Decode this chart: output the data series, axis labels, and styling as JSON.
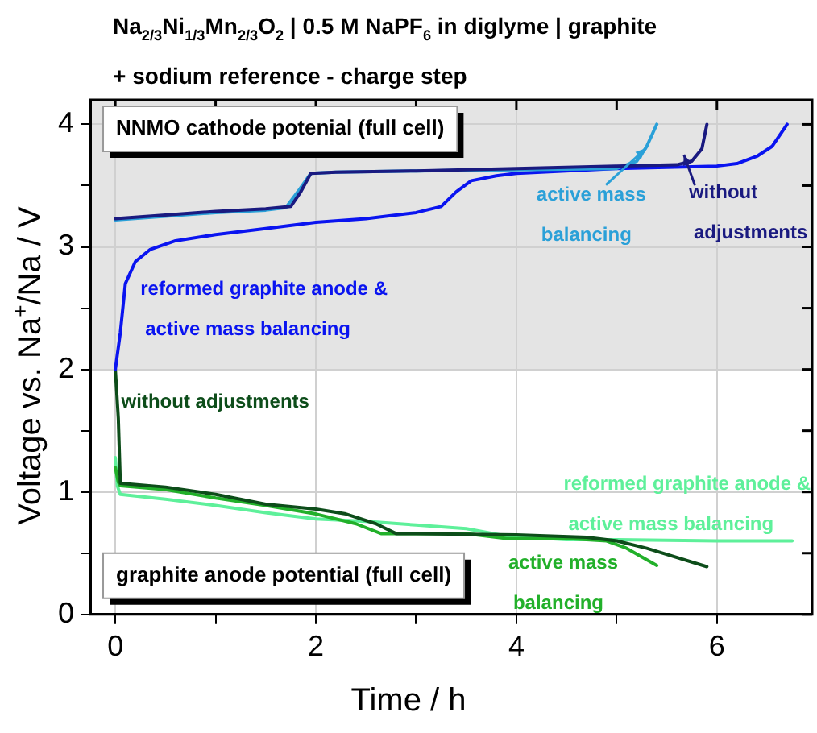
{
  "chart_data": {
    "type": "line",
    "title": "Na$_{2/3}$Ni$_{1/3}$Mn$_{2/3}$O$_{2}$ | 0.5 M NaPF$_{6}$ in diglyme | graphite",
    "subtitle": "+ sodium reference - charge step",
    "xlabel": "Time / h",
    "ylabel": "Voltage vs. Na$^{+}$/Na / V",
    "xlim": [
      -0.25,
      6.95
    ],
    "ylim": [
      0,
      4.2
    ],
    "xticks": [
      0,
      {
        "value": 1,
        "label": null
      },
      2,
      {
        "value": 3,
        "label": null
      },
      4,
      {
        "value": 5,
        "label": null
      },
      6
    ],
    "yticks": [
      0,
      {
        "value": 0.5,
        "label": null
      },
      1,
      {
        "value": 1.5,
        "label": null
      },
      2,
      {
        "value": 2.5,
        "label": null
      },
      3,
      {
        "value": 3.5,
        "label": null
      },
      4
    ],
    "grid": true,
    "marker": "none",
    "line_style": "solid",
    "bands": [
      {
        "axis": "y",
        "from": 2,
        "to": 4.2,
        "color": "#e4e4e4"
      }
    ],
    "series": [
      {
        "name": "without adjustments",
        "color": "#1a1a80",
        "x": [
          0,
          0.5,
          1,
          1.5,
          1.75,
          1.85,
          1.95,
          2.2,
          3,
          4,
          5,
          5.6,
          5.75,
          5.85,
          5.9
        ],
        "values": [
          3.23,
          3.26,
          3.29,
          3.31,
          3.33,
          3.45,
          3.6,
          3.61,
          3.62,
          3.64,
          3.66,
          3.67,
          3.7,
          3.8,
          4.0
        ]
      },
      {
        "name": "active mass balancing",
        "color": "#2aa0d8",
        "x": [
          0,
          0.5,
          1,
          1.5,
          1.7,
          1.82,
          1.95,
          2.2,
          3,
          4,
          5,
          5.2,
          5.3,
          5.4
        ],
        "values": [
          3.22,
          3.25,
          3.28,
          3.3,
          3.32,
          3.45,
          3.6,
          3.61,
          3.62,
          3.63,
          3.64,
          3.7,
          3.82,
          4.0
        ]
      },
      {
        "name": "reformed graphite anode & active mass balancing",
        "color": "#0a14f0",
        "x": [
          0,
          0.05,
          0.1,
          0.2,
          0.35,
          0.6,
          1,
          1.5,
          2,
          2.5,
          3,
          3.25,
          3.4,
          3.55,
          3.8,
          4,
          5,
          6,
          6.2,
          6.4,
          6.55,
          6.7
        ],
        "values": [
          2.0,
          2.3,
          2.7,
          2.88,
          2.98,
          3.05,
          3.1,
          3.15,
          3.2,
          3.23,
          3.28,
          3.33,
          3.45,
          3.54,
          3.58,
          3.6,
          3.64,
          3.66,
          3.68,
          3.74,
          3.82,
          4.0
        ]
      },
      {
        "name": "without adjustments",
        "color": "#0d4d1a",
        "x": [
          0,
          0.03,
          0.05,
          0.5,
          1,
          1.5,
          2,
          2.3,
          2.6,
          2.8,
          3,
          4,
          4.7,
          5,
          5.3,
          5.9
        ],
        "values": [
          2.0,
          1.6,
          1.07,
          1.04,
          0.98,
          0.9,
          0.86,
          0.82,
          0.74,
          0.66,
          0.66,
          0.65,
          0.63,
          0.6,
          0.54,
          0.39
        ]
      },
      {
        "name": "active mass balancing",
        "color": "#22b02a",
        "x": [
          0,
          0.03,
          0.05,
          0.5,
          1,
          1.5,
          2,
          2.4,
          2.65,
          3,
          3.5,
          3.9,
          4.5,
          4.9,
          5.1,
          5.4
        ],
        "values": [
          1.2,
          1.08,
          1.05,
          1.02,
          0.95,
          0.89,
          0.82,
          0.74,
          0.66,
          0.66,
          0.66,
          0.62,
          0.62,
          0.6,
          0.54,
          0.4
        ]
      },
      {
        "name": "reformed graphite anode & active mass balancing",
        "color": "#5ef09a",
        "x": [
          0,
          0.02,
          0.05,
          0.5,
          1,
          1.5,
          2,
          2.5,
          3,
          3.5,
          3.9,
          4.5,
          5,
          6,
          6.75
        ],
        "values": [
          1.28,
          1.05,
          0.98,
          0.94,
          0.89,
          0.83,
          0.78,
          0.76,
          0.73,
          0.7,
          0.64,
          0.61,
          0.61,
          0.6,
          0.6
        ]
      }
    ],
    "annotations": [
      "NNMO cathode potenial (full cell)",
      "graphite anode potential (full cell)"
    ]
  }
}
